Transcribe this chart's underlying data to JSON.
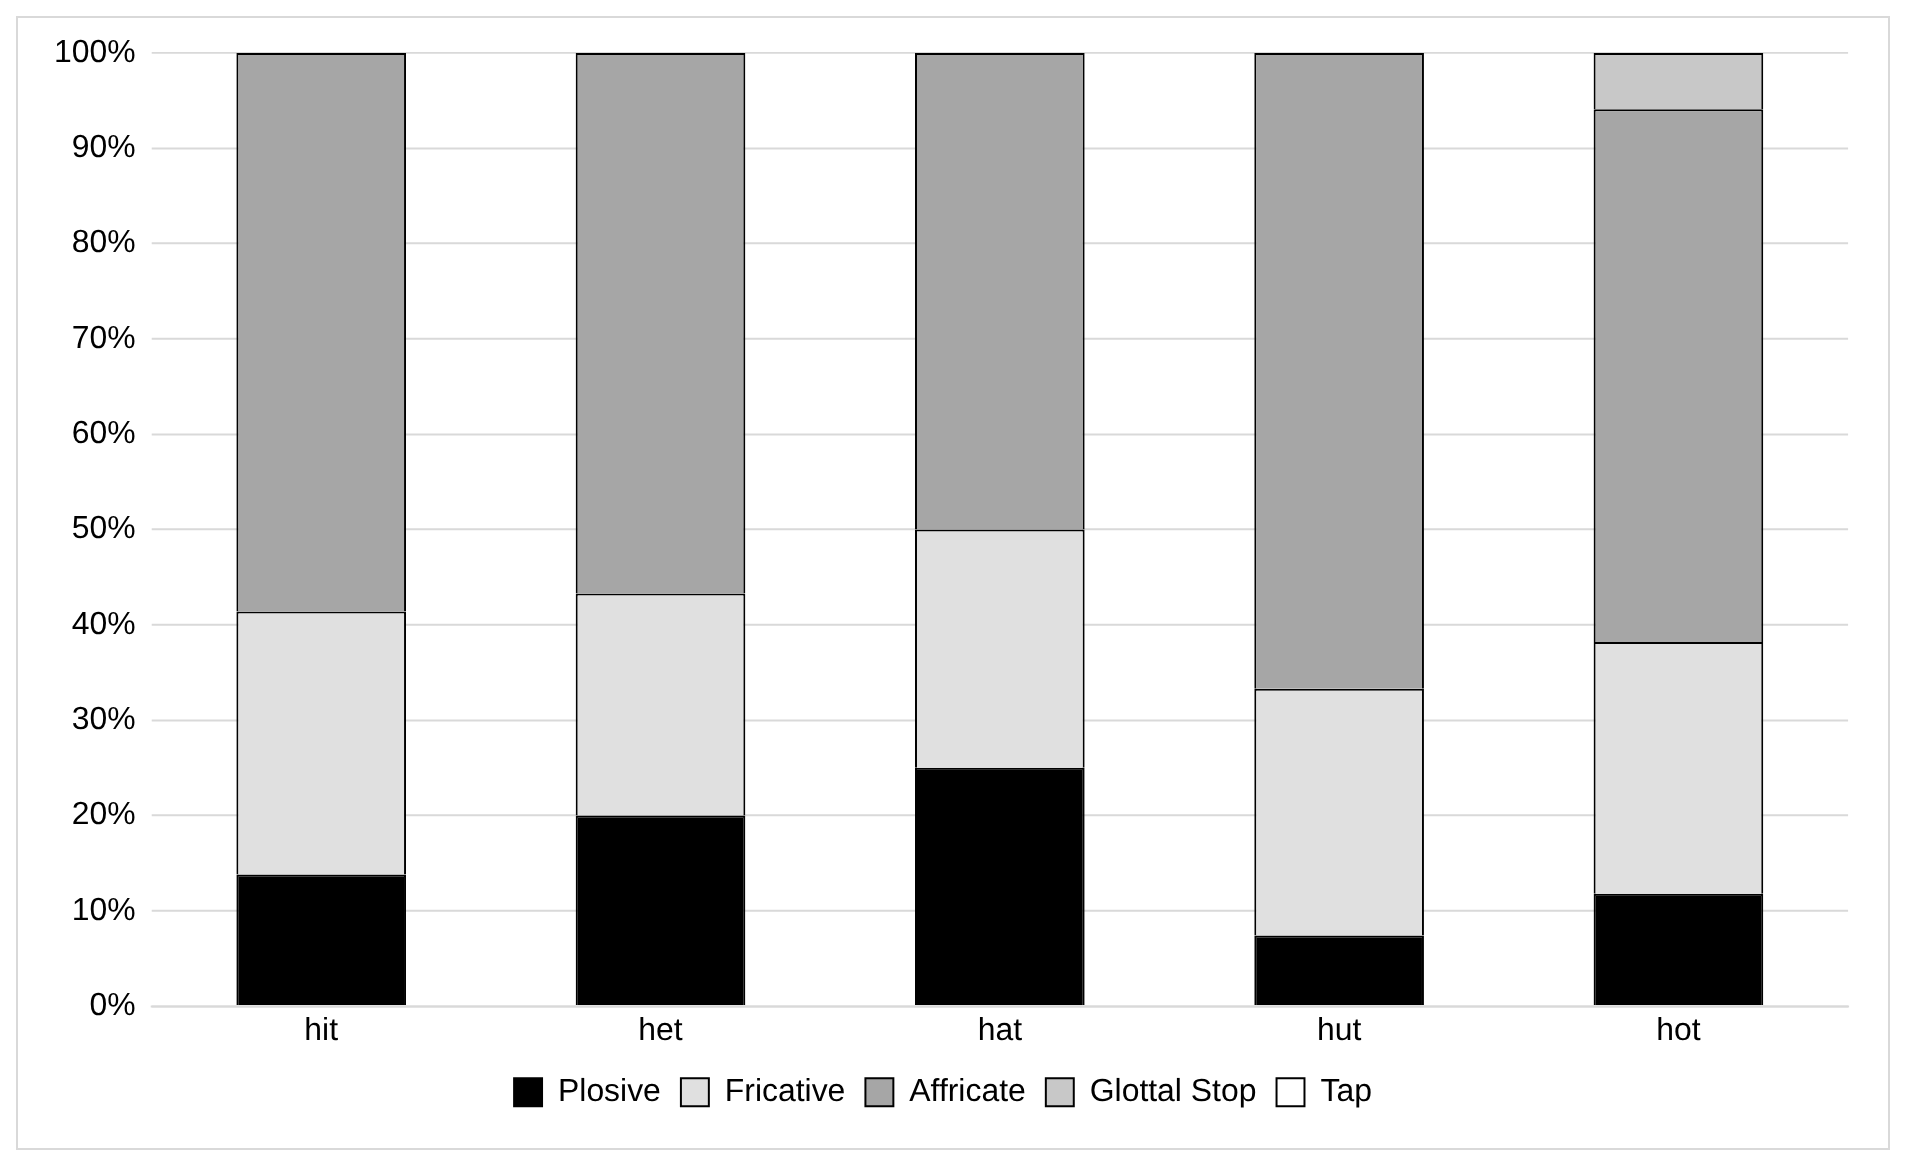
{
  "chart_data": {
    "type": "bar",
    "stacked": true,
    "categories": [
      "hit",
      "het",
      "hat",
      "hut",
      "hot"
    ],
    "series": [
      {
        "name": "Plosive",
        "color": "#000000",
        "values": [
          13.8,
          20,
          25,
          7.4,
          11.8
        ]
      },
      {
        "name": "Fricative",
        "color": "#e0e0e0",
        "values": [
          27.6,
          23.3,
          25,
          25.9,
          26.4
        ]
      },
      {
        "name": "Affricate",
        "color": "#a6a6a6",
        "values": [
          58.6,
          56.7,
          50,
          66.7,
          55.9
        ]
      },
      {
        "name": "Glottal Stop",
        "color": "#c8c8c8",
        "values": [
          0,
          0,
          0,
          0,
          5.9
        ]
      },
      {
        "name": "Tap",
        "color": "#ffffff",
        "values": [
          0,
          0,
          0,
          0,
          0
        ]
      }
    ],
    "ylim": [
      0,
      100
    ],
    "yticks": [
      {
        "value": 0,
        "label": "0%"
      },
      {
        "value": 10,
        "label": "10%"
      },
      {
        "value": 20,
        "label": "20%"
      },
      {
        "value": 30,
        "label": "30%"
      },
      {
        "value": 40,
        "label": "40%"
      },
      {
        "value": 50,
        "label": "50%"
      },
      {
        "value": 60,
        "label": "60%"
      },
      {
        "value": 70,
        "label": "70%"
      },
      {
        "value": 80,
        "label": "80%"
      },
      {
        "value": 90,
        "label": "90%"
      },
      {
        "value": 100,
        "label": "100%"
      }
    ],
    "grid": "y",
    "legend": "bottom"
  }
}
